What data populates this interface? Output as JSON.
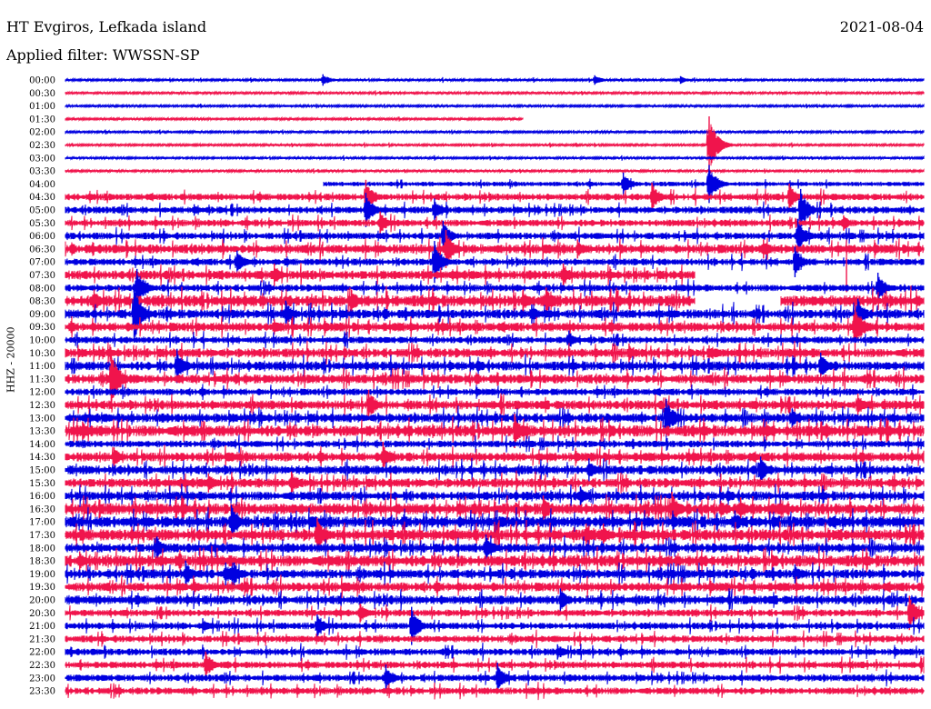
{
  "header": {
    "station": "HT Evgiros, Lefkada island",
    "date": "2021-08-04",
    "filter_label": "Applied filter: WWSSN-SP"
  },
  "axis": {
    "channel_label": "HHZ - 20000"
  },
  "colors": {
    "trace_a": "#0000e0",
    "trace_b": "#f0144c",
    "background": "#ffffff"
  },
  "chart_data": {
    "type": "line",
    "title": "HT Evgiros, Lefkada island",
    "ylabel": "HHZ - 20000",
    "grid": false,
    "row_labels": [
      "00:00",
      "00:30",
      "01:00",
      "01:30",
      "02:00",
      "02:30",
      "03:00",
      "03:30",
      "04:00",
      "04:30",
      "05:00",
      "05:30",
      "06:00",
      "06:30",
      "07:00",
      "07:30",
      "08:00",
      "08:30",
      "09:00",
      "09:30",
      "10:00",
      "10:30",
      "11:00",
      "11:30",
      "12:00",
      "12:30",
      "13:00",
      "13:30",
      "14:00",
      "14:30",
      "15:00",
      "15:30",
      "16:00",
      "16:30",
      "17:00",
      "17:30",
      "18:00",
      "18:30",
      "19:00",
      "19:30",
      "20:00",
      "20:30",
      "21:00",
      "21:30",
      "22:00",
      "22:30",
      "23:00",
      "23:30"
    ],
    "row_colors": [
      "trace_a",
      "trace_b"
    ],
    "noise_level": [
      1,
      1,
      1,
      1,
      1,
      1,
      1,
      1,
      2,
      3,
      3,
      3,
      3,
      4,
      3,
      4,
      3,
      5,
      4,
      4,
      3,
      4,
      4,
      4,
      3,
      4,
      4,
      5,
      3,
      4,
      4,
      4,
      4,
      5,
      5,
      5,
      4,
      5,
      4,
      4,
      4,
      3,
      3,
      3,
      3,
      3,
      3,
      3
    ],
    "gaps": [
      {
        "row": 3,
        "start_min": 16,
        "end_min": 30
      },
      {
        "row": 8,
        "start_min": 0,
        "end_min": 9
      },
      {
        "row": 15,
        "start_min": 22,
        "end_min": 30
      },
      {
        "row": 17,
        "start_min": 22,
        "end_min": 25
      }
    ],
    "events": [
      {
        "row": 0,
        "minute": 9.0,
        "amplitude": 6
      },
      {
        "row": 0,
        "minute": 18.5,
        "amplitude": 5
      },
      {
        "row": 0,
        "minute": 21.5,
        "amplitude": 4
      },
      {
        "row": 5,
        "minute": 22.5,
        "amplitude": 30
      },
      {
        "row": 8,
        "minute": 19.5,
        "amplitude": 12
      },
      {
        "row": 8,
        "minute": 22.5,
        "amplitude": 20
      },
      {
        "row": 9,
        "minute": 10.5,
        "amplitude": 18
      },
      {
        "row": 9,
        "minute": 20.5,
        "amplitude": 15
      },
      {
        "row": 9,
        "minute": 25.3,
        "amplitude": 14
      },
      {
        "row": 10,
        "minute": 4.5,
        "amplitude": 6
      },
      {
        "row": 10,
        "minute": 10.5,
        "amplitude": 18
      },
      {
        "row": 10,
        "minute": 12.9,
        "amplitude": 12
      },
      {
        "row": 10,
        "minute": 25.7,
        "amplitude": 22
      },
      {
        "row": 11,
        "minute": 11.0,
        "amplitude": 12
      },
      {
        "row": 11,
        "minute": 27.2,
        "amplitude": 8
      },
      {
        "row": 12,
        "minute": 13.2,
        "amplitude": 16
      },
      {
        "row": 12,
        "minute": 25.6,
        "amplitude": 18
      },
      {
        "row": 13,
        "minute": 13.3,
        "amplitude": 20
      },
      {
        "row": 13,
        "minute": 17.9,
        "amplitude": 10
      },
      {
        "row": 13,
        "minute": 24.4,
        "amplitude": 10
      },
      {
        "row": 14,
        "minute": 6.0,
        "amplitude": 12
      },
      {
        "row": 14,
        "minute": 12.9,
        "amplitude": 22
      },
      {
        "row": 14,
        "minute": 25.5,
        "amplitude": 16
      },
      {
        "row": 15,
        "minute": 7.3,
        "amplitude": 12
      },
      {
        "row": 15,
        "minute": 17.4,
        "amplitude": 12
      },
      {
        "row": 15,
        "minute": 27.3,
        "amplitude": 18
      },
      {
        "row": 16,
        "minute": 2.5,
        "amplitude": 20
      },
      {
        "row": 16,
        "minute": 28.4,
        "amplitude": 16
      },
      {
        "row": 17,
        "minute": 1.0,
        "amplitude": 12
      },
      {
        "row": 17,
        "minute": 10.0,
        "amplitude": 12
      },
      {
        "row": 17,
        "minute": 16.0,
        "amplitude": 12
      },
      {
        "row": 17,
        "minute": 16.8,
        "amplitude": 14
      },
      {
        "row": 18,
        "minute": 2.4,
        "amplitude": 30
      },
      {
        "row": 18,
        "minute": 7.7,
        "amplitude": 14
      },
      {
        "row": 18,
        "minute": 16.3,
        "amplitude": 10
      },
      {
        "row": 18,
        "minute": 27.7,
        "amplitude": 16
      },
      {
        "row": 19,
        "minute": 7.3,
        "amplitude": 8
      },
      {
        "row": 19,
        "minute": 27.6,
        "amplitude": 24
      },
      {
        "row": 20,
        "minute": 17.6,
        "amplitude": 10
      },
      {
        "row": 21,
        "minute": 19.7,
        "amplitude": 10
      },
      {
        "row": 21,
        "minute": 22.5,
        "amplitude": 8
      },
      {
        "row": 22,
        "minute": 3.9,
        "amplitude": 18
      },
      {
        "row": 22,
        "minute": 26.4,
        "amplitude": 14
      },
      {
        "row": 23,
        "minute": 1.6,
        "amplitude": 30
      },
      {
        "row": 25,
        "minute": 10.6,
        "amplitude": 16
      },
      {
        "row": 25,
        "minute": 27.7,
        "amplitude": 12
      },
      {
        "row": 26,
        "minute": 21.0,
        "amplitude": 20
      },
      {
        "row": 26,
        "minute": 25.4,
        "amplitude": 10
      },
      {
        "row": 27,
        "minute": 0.6,
        "amplitude": 10
      },
      {
        "row": 27,
        "minute": 15.7,
        "amplitude": 18
      },
      {
        "row": 27,
        "minute": 24.5,
        "amplitude": 10
      },
      {
        "row": 27,
        "minute": 26.6,
        "amplitude": 8
      },
      {
        "row": 29,
        "minute": 1.7,
        "amplitude": 10
      },
      {
        "row": 29,
        "minute": 11.1,
        "amplitude": 16
      },
      {
        "row": 30,
        "minute": 18.3,
        "amplitude": 12
      },
      {
        "row": 30,
        "minute": 24.3,
        "amplitude": 14
      },
      {
        "row": 31,
        "minute": 5.0,
        "amplitude": 10
      },
      {
        "row": 31,
        "minute": 7.9,
        "amplitude": 12
      },
      {
        "row": 32,
        "minute": 18.0,
        "amplitude": 10
      },
      {
        "row": 33,
        "minute": 16.7,
        "amplitude": 14
      },
      {
        "row": 33,
        "minute": 21.2,
        "amplitude": 18
      },
      {
        "row": 33,
        "minute": 23.6,
        "amplitude": 12
      },
      {
        "row": 34,
        "minute": 5.8,
        "amplitude": 18
      },
      {
        "row": 34,
        "minute": 23.4,
        "amplitude": 12
      },
      {
        "row": 35,
        "minute": 8.8,
        "amplitude": 18
      },
      {
        "row": 35,
        "minute": 18.2,
        "amplitude": 12
      },
      {
        "row": 35,
        "minute": 18.8,
        "amplitude": 12
      },
      {
        "row": 36,
        "minute": 3.2,
        "amplitude": 12
      },
      {
        "row": 36,
        "minute": 14.7,
        "amplitude": 14
      },
      {
        "row": 37,
        "minute": 0.5,
        "amplitude": 10
      },
      {
        "row": 38,
        "minute": 4.2,
        "amplitude": 14
      },
      {
        "row": 38,
        "minute": 5.6,
        "amplitude": 12
      },
      {
        "row": 38,
        "minute": 5.9,
        "amplitude": 12
      },
      {
        "row": 38,
        "minute": 25.5,
        "amplitude": 10
      },
      {
        "row": 39,
        "minute": 4.5,
        "amplitude": 8
      },
      {
        "row": 40,
        "minute": 17.3,
        "amplitude": 12
      },
      {
        "row": 41,
        "minute": 10.3,
        "amplitude": 10
      },
      {
        "row": 41,
        "minute": 29.5,
        "amplitude": 18
      },
      {
        "row": 42,
        "minute": 4.8,
        "amplitude": 8
      },
      {
        "row": 42,
        "minute": 8.8,
        "amplitude": 12
      },
      {
        "row": 42,
        "minute": 12.1,
        "amplitude": 20
      },
      {
        "row": 44,
        "minute": 17.2,
        "amplitude": 8
      },
      {
        "row": 45,
        "minute": 4.9,
        "amplitude": 14
      },
      {
        "row": 46,
        "minute": 11.2,
        "amplitude": 14
      },
      {
        "row": 46,
        "minute": 15.1,
        "amplitude": 16
      }
    ]
  }
}
